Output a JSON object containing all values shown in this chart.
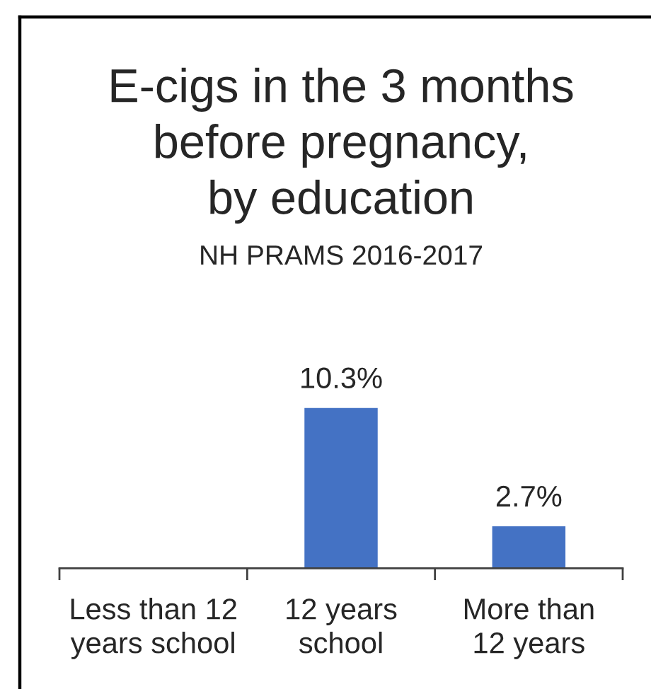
{
  "chart_data": {
    "type": "bar",
    "title": "E-cigs in the 3 months\nbefore pregnancy,\nby education",
    "subtitle": "NH PRAMS 2016-2017",
    "categories": [
      "Less than 12\nyears school",
      "12 years\nschool",
      "More than\n12 years"
    ],
    "values": [
      null,
      10.3,
      2.7
    ],
    "color": "#4472c4",
    "value_labels": [
      null,
      "10.3%",
      "2.7%"
    ]
  }
}
